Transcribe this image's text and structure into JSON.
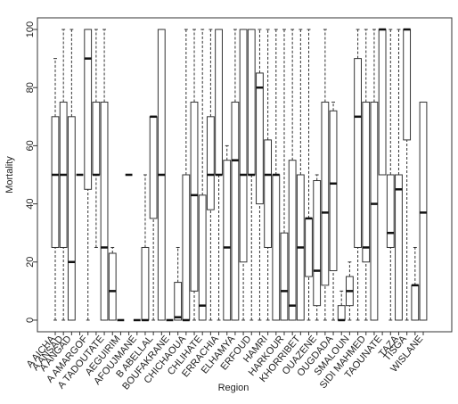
{
  "chart_data": {
    "type": "box",
    "xlabel": "Region",
    "ylabel": "Mortality",
    "categories": [
      "A AICHA",
      "A ANSAD",
      "A ANGAD",
      null,
      "A AMARGOF",
      null,
      "A TADOUTATE",
      null,
      "AEGUIRIM",
      null,
      "AFOUJMANE",
      null,
      "B ABELLAL",
      null,
      "BOUFAKRANE",
      null,
      "CHICHAOUA",
      null,
      "CHLIHATE",
      null,
      "ERRACHIA",
      null,
      "ELHAMYA",
      null,
      "ERFOUD",
      null,
      "HAMRI",
      null,
      "HARKOUR",
      null,
      "KHORRIBET",
      null,
      "OUAZENE",
      null,
      "OUGDADA",
      null,
      "SMALOUN",
      null,
      "SIDI MAHMED",
      null,
      "TAOUNATE",
      null,
      "TAZA",
      "TISGA",
      null,
      "WISLANE"
    ],
    "min": [
      0,
      0,
      0,
      50,
      0,
      25,
      0,
      0,
      0,
      50,
      0,
      0,
      0,
      0,
      0,
      0,
      0,
      0,
      0,
      0,
      0,
      0,
      0,
      0,
      0,
      0,
      0,
      0,
      0,
      0,
      0,
      0,
      0,
      0,
      0,
      0,
      0,
      0,
      0,
      0,
      50,
      0,
      0,
      0,
      0,
      0
    ],
    "q1": [
      25,
      25,
      0,
      50,
      45,
      50,
      0,
      0,
      0,
      50,
      0,
      0,
      35,
      0,
      0,
      0,
      0,
      10,
      0,
      38,
      50,
      0,
      0,
      20,
      50,
      40,
      25,
      0,
      0,
      0,
      0,
      15,
      5,
      12,
      17,
      0,
      5,
      25,
      20,
      0,
      50,
      25,
      0,
      62,
      0,
      0
    ],
    "median": [
      50,
      50,
      20,
      50,
      90,
      50,
      25,
      10,
      0,
      50,
      0,
      0,
      70,
      50,
      0,
      1,
      0,
      43,
      5,
      50,
      50,
      25,
      55,
      50,
      50,
      80,
      50,
      50,
      10,
      5,
      25,
      35,
      17,
      37,
      47,
      0,
      10,
      70,
      25,
      40,
      100,
      30,
      45,
      100,
      12,
      37
    ],
    "q3": [
      70,
      75,
      70,
      50,
      100,
      75,
      75,
      23,
      0,
      50,
      0,
      25,
      70,
      100,
      0,
      13,
      50,
      75,
      43,
      70,
      100,
      55,
      75,
      100,
      100,
      85,
      62,
      50,
      30,
      55,
      50,
      35,
      48,
      75,
      72,
      5,
      15,
      90,
      75,
      75,
      100,
      50,
      50,
      100,
      12,
      75
    ],
    "max": [
      90,
      100,
      100,
      50,
      100,
      100,
      100,
      25,
      0,
      50,
      0,
      50,
      70,
      100,
      0,
      25,
      100,
      100,
      100,
      100,
      100,
      60,
      100,
      100,
      100,
      100,
      100,
      100,
      100,
      100,
      100,
      100,
      50,
      100,
      75,
      10,
      20,
      100,
      100,
      100,
      100,
      100,
      100,
      100,
      25,
      75
    ],
    "ylim": [
      -4,
      104
    ],
    "yticks": [
      0,
      20,
      40,
      60,
      80,
      100
    ],
    "color": "#ffffff"
  }
}
